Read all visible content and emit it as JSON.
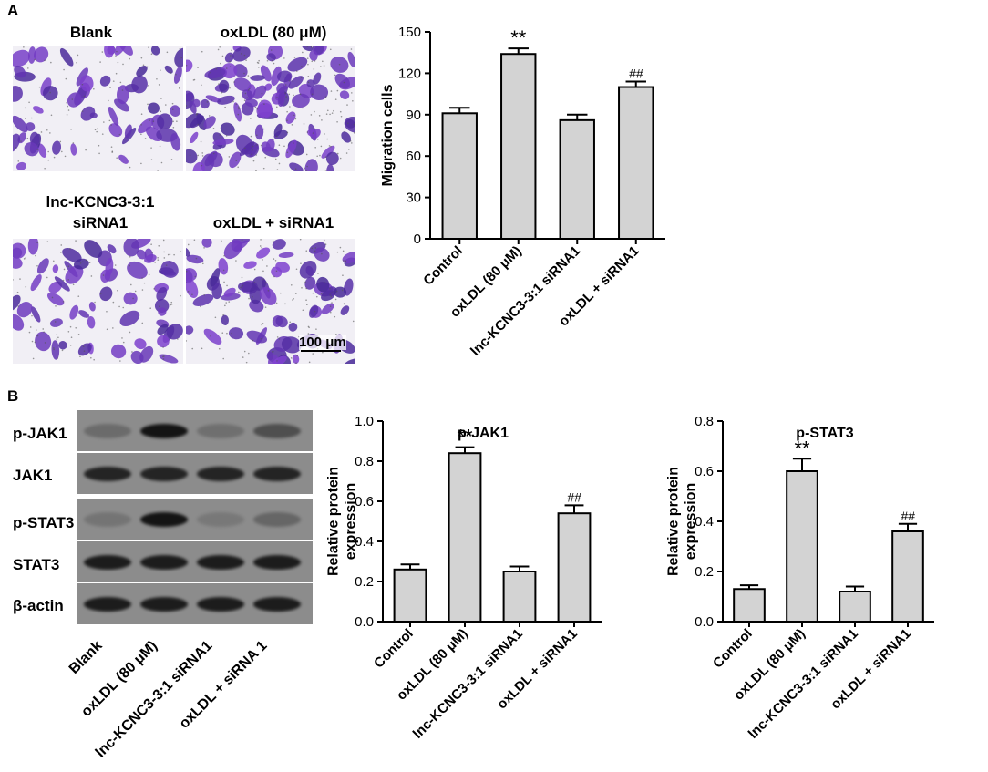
{
  "panelA": {
    "letter": "A",
    "micro_labels": [
      "Blank",
      "oxLDL (80 μM)",
      "lnc-KCNC3-3:1",
      "siRNA1",
      "oxLDL + siRNA1"
    ],
    "scale_bar": "100 μm"
  },
  "panelB": {
    "letter": "B",
    "blot_rows": [
      "p-JAK1",
      "JAK1",
      "p-STAT3",
      "STAT3",
      "β-actin"
    ],
    "blot_columns": [
      "Blank",
      "oxLDL (80 μM)",
      "lnc-KCNC3-3:1 siRNA1",
      "oxLDL + siRNA 1"
    ],
    "blot_intensity": [
      [
        0.35,
        1.0,
        0.3,
        0.6
      ],
      [
        0.9,
        0.9,
        0.9,
        0.9
      ],
      [
        0.25,
        1.0,
        0.2,
        0.4
      ],
      [
        0.95,
        0.95,
        0.95,
        0.95
      ],
      [
        0.95,
        0.95,
        0.95,
        0.95
      ]
    ]
  },
  "chart_data": [
    {
      "type": "bar",
      "title": "",
      "ylabel": "Migration cells",
      "xlabel": "",
      "categories": [
        "Control",
        "oxLDL (80 μM)",
        "lnc-KCNC3-3:1 siRNA1",
        "oxLDL + siRNA1"
      ],
      "values": [
        91,
        134,
        86,
        110
      ],
      "errors": [
        4,
        4,
        4,
        4
      ],
      "annotations": [
        "",
        "**",
        "",
        "##"
      ],
      "ylim": [
        0,
        150
      ],
      "yticks": [
        "0",
        "30",
        "60",
        "90",
        "120",
        "150"
      ],
      "ytick_values": [
        0,
        30,
        60,
        90,
        120,
        150
      ],
      "bar_color": "#d3d3d3"
    },
    {
      "type": "bar",
      "title": "p-JAK1",
      "ylabel": "Relative protein expression",
      "xlabel": "",
      "categories": [
        "Control",
        "oxLDL (80 μM)",
        "lnc-KCNC3-3:1 siRNA1",
        "oxLDL + siRNA1"
      ],
      "values": [
        0.26,
        0.84,
        0.25,
        0.54
      ],
      "errors": [
        0.025,
        0.03,
        0.025,
        0.04
      ],
      "annotations": [
        "",
        "**",
        "",
        "##"
      ],
      "ylim": [
        0,
        1.0
      ],
      "yticks": [
        "0.0",
        "0.2",
        "0.4",
        "0.6",
        "0.8",
        "1.0"
      ],
      "ytick_values": [
        0,
        0.2,
        0.4,
        0.6,
        0.8,
        1.0
      ],
      "bar_color": "#d3d3d3"
    },
    {
      "type": "bar",
      "title": "p-STAT3",
      "ylabel": "Relative protein expression",
      "xlabel": "",
      "categories": [
        "Control",
        "oxLDL (80 μM)",
        "lnc-KCNC3-3:1 siRNA1",
        "oxLDL + siRNA1"
      ],
      "values": [
        0.13,
        0.6,
        0.12,
        0.36
      ],
      "errors": [
        0.015,
        0.05,
        0.02,
        0.03
      ],
      "annotations": [
        "",
        "**",
        "",
        "##"
      ],
      "ylim": [
        0,
        0.8
      ],
      "yticks": [
        "0.0",
        "0.2",
        "0.4",
        "0.6",
        "0.8"
      ],
      "ytick_values": [
        0,
        0.2,
        0.4,
        0.6,
        0.8
      ],
      "bar_color": "#d3d3d3"
    }
  ]
}
